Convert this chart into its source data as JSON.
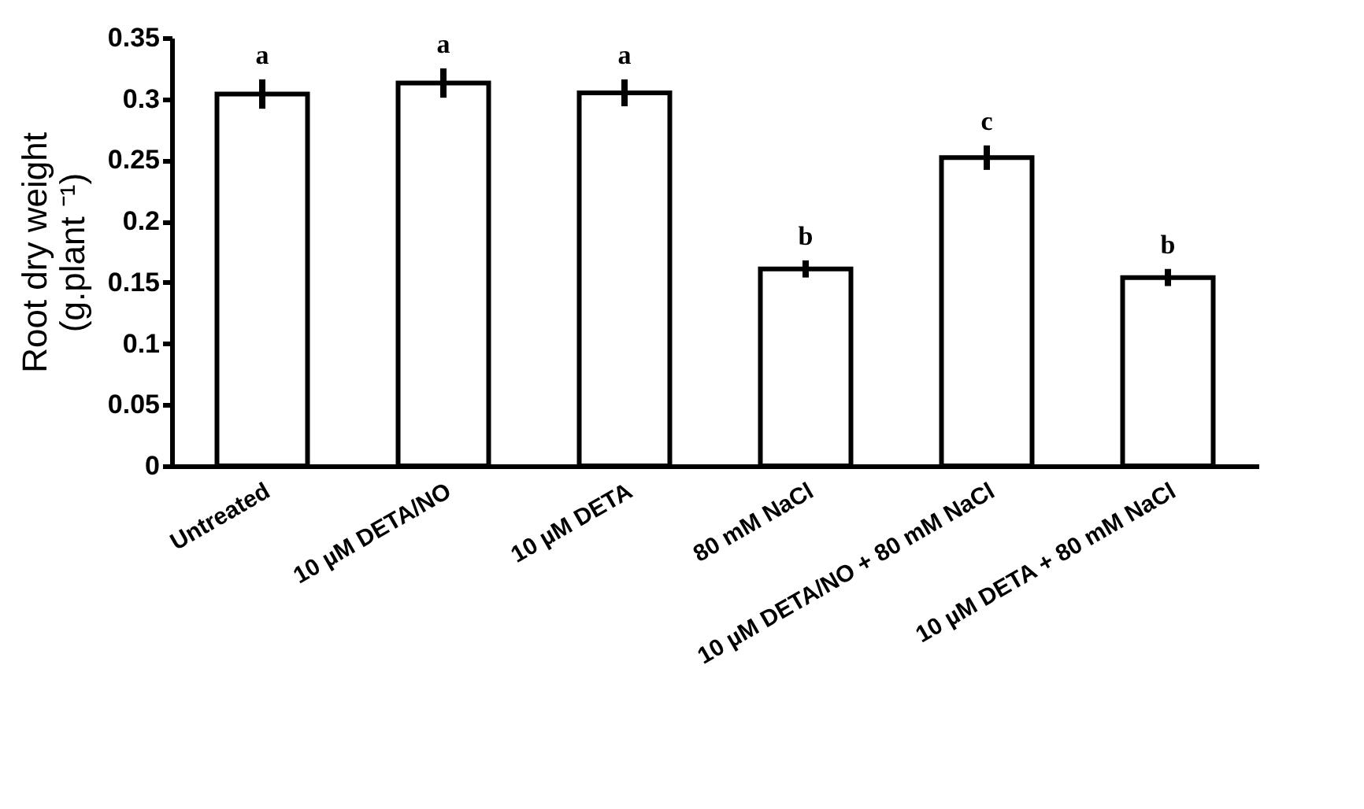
{
  "chart_data": {
    "type": "bar",
    "categories": [
      "Untreated",
      "10 µM DETA/NO",
      "10 µM DETA",
      "80 mM NaCl",
      "10 µM DETA/NO + 80 mM NaCl",
      "10 µM DETA + 80 mM NaCl"
    ],
    "values": [
      0.304,
      0.313,
      0.305,
      0.161,
      0.252,
      0.154
    ],
    "errors": [
      0.012,
      0.012,
      0.011,
      0.007,
      0.01,
      0.007
    ],
    "color": "#ffffff",
    "ylabel": "Root dry weight\n(g.plant ⁻¹)",
    "ylim": [
      0,
      0.35
    ],
    "yticks": [
      0,
      0.05,
      0.1,
      0.15,
      0.2,
      0.25,
      0.3,
      0.35
    ],
    "annotations": [
      "a",
      "a",
      "a",
      "b",
      "c",
      "b"
    ],
    "grid": false
  }
}
